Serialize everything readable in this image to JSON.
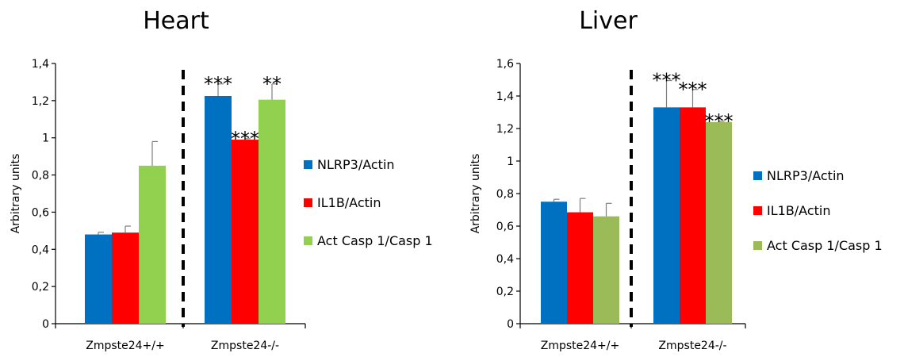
{
  "chart_data": [
    {
      "type": "bar",
      "title": "Heart",
      "ylabel": "Arbitrary units",
      "ylim": [
        0,
        1.4
      ],
      "ytick_labels": [
        "0",
        "0,2",
        "0,4",
        "0,6",
        "0,8",
        "1",
        "1,2",
        "1,4"
      ],
      "categories": [
        "Zmpste24+/+",
        "Zmpste24-/-"
      ],
      "legend_position": "right",
      "series": [
        {
          "name": "NLRP3/Actin",
          "color": "#0070C0",
          "values": [
            0.48,
            1.225
          ],
          "errors": [
            0.012,
            0.065
          ],
          "significance": [
            "",
            "***"
          ]
        },
        {
          "name": "IL1B/Actin",
          "color": "#FF0000",
          "values": [
            0.49,
            0.99
          ],
          "errors": [
            0.035,
            0.005
          ],
          "significance": [
            "",
            "***"
          ]
        },
        {
          "name": "Act Casp 1/Casp 1",
          "color": "#92D050",
          "values": [
            0.85,
            1.205
          ],
          "errors": [
            0.13,
            0.085
          ],
          "significance": [
            "",
            "**"
          ]
        }
      ]
    },
    {
      "type": "bar",
      "title": "Liver",
      "ylabel": "Arbitrary units",
      "ylim": [
        0,
        1.6
      ],
      "ytick_labels": [
        "0",
        "0,2",
        "0,4",
        "0,6",
        "0,8",
        "1",
        "1,2",
        "1,4",
        "1,6"
      ],
      "categories": [
        "Zmpste24+/+",
        "Zmpste24-/-"
      ],
      "legend_position": "right",
      "series": [
        {
          "name": "NLRP3/Actin",
          "color": "#0070C0",
          "values": [
            0.75,
            1.33
          ],
          "errors": [
            0.015,
            0.165
          ],
          "significance": [
            "",
            "***"
          ]
        },
        {
          "name": "IL1B/Actin",
          "color": "#FF0000",
          "values": [
            0.685,
            1.33
          ],
          "errors": [
            0.085,
            0.11
          ],
          "significance": [
            "",
            "***"
          ]
        },
        {
          "name": "Act Casp 1/Casp 1",
          "color": "#9BBB59",
          "values": [
            0.66,
            1.24
          ],
          "errors": [
            0.08,
            0.005
          ],
          "significance": [
            "",
            "***"
          ]
        }
      ]
    }
  ]
}
